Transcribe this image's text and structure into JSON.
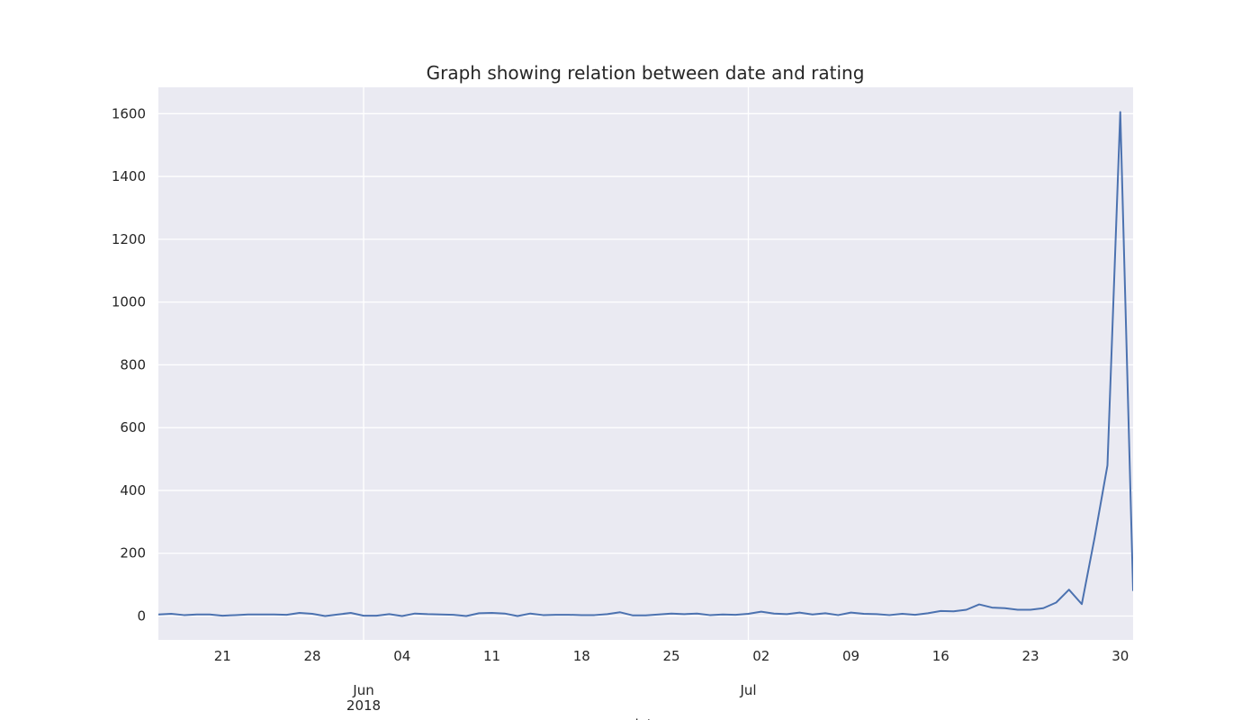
{
  "chart_data": {
    "type": "line",
    "title": "Graph showing relation between date and rating",
    "xlabel": "date",
    "ylabel": "",
    "xlim": [
      "2018-05-16",
      "2018-07-31"
    ],
    "ylim": [
      -76,
      1684
    ],
    "grid": true,
    "colors": {
      "background": "#eaeaf2",
      "grid": "#ffffff",
      "line": "#4c72b0",
      "text": "#262626"
    },
    "y_ticks": [
      0,
      200,
      400,
      600,
      800,
      1000,
      1200,
      1400,
      1600
    ],
    "x_ticks": [
      {
        "date": "2018-05-21",
        "label": "21"
      },
      {
        "date": "2018-05-28",
        "label": "28"
      },
      {
        "date": "2018-06-04",
        "label": "04"
      },
      {
        "date": "2018-06-11",
        "label": "11"
      },
      {
        "date": "2018-06-18",
        "label": "18"
      },
      {
        "date": "2018-06-25",
        "label": "25"
      },
      {
        "date": "2018-07-02",
        "label": "02"
      },
      {
        "date": "2018-07-09",
        "label": "09"
      },
      {
        "date": "2018-07-16",
        "label": "16"
      },
      {
        "date": "2018-07-23",
        "label": "23"
      },
      {
        "date": "2018-07-30",
        "label": "30"
      }
    ],
    "major_ticks": [
      {
        "date": "2018-06-01",
        "label": "Jun",
        "sublabel": "2018"
      },
      {
        "date": "2018-07-01",
        "label": "Jul",
        "sublabel": ""
      }
    ],
    "series": [
      {
        "x": [
          "2018-05-16",
          "2018-05-17",
          "2018-05-18",
          "2018-05-19",
          "2018-05-20",
          "2018-05-21",
          "2018-05-22",
          "2018-05-23",
          "2018-05-24",
          "2018-05-25",
          "2018-05-26",
          "2018-05-27",
          "2018-05-28",
          "2018-05-29",
          "2018-05-30",
          "2018-05-31",
          "2018-06-01",
          "2018-06-02",
          "2018-06-03",
          "2018-06-04",
          "2018-06-05",
          "2018-06-06",
          "2018-06-07",
          "2018-06-08",
          "2018-06-09",
          "2018-06-10",
          "2018-06-11",
          "2018-06-12",
          "2018-06-13",
          "2018-06-14",
          "2018-06-15",
          "2018-06-16",
          "2018-06-17",
          "2018-06-18",
          "2018-06-19",
          "2018-06-20",
          "2018-06-21",
          "2018-06-22",
          "2018-06-23",
          "2018-06-24",
          "2018-06-25",
          "2018-06-26",
          "2018-06-27",
          "2018-06-28",
          "2018-06-29",
          "2018-06-30",
          "2018-07-01",
          "2018-07-02",
          "2018-07-03",
          "2018-07-04",
          "2018-07-05",
          "2018-07-06",
          "2018-07-07",
          "2018-07-08",
          "2018-07-09",
          "2018-07-10",
          "2018-07-11",
          "2018-07-12",
          "2018-07-13",
          "2018-07-14",
          "2018-07-15",
          "2018-07-16",
          "2018-07-17",
          "2018-07-18",
          "2018-07-19",
          "2018-07-20",
          "2018-07-21",
          "2018-07-22",
          "2018-07-23",
          "2018-07-24",
          "2018-07-25",
          "2018-07-26",
          "2018-07-27",
          "2018-07-28",
          "2018-07-29",
          "2018-07-30",
          "2018-07-31"
        ],
        "y": [
          5,
          7,
          3,
          5,
          5,
          1,
          3,
          5,
          5,
          5,
          4,
          10,
          7,
          0,
          5,
          10,
          1,
          1,
          6,
          0,
          8,
          6,
          5,
          4,
          0,
          9,
          10,
          8,
          0,
          8,
          3,
          4,
          4,
          3,
          3,
          6,
          12,
          2,
          2,
          5,
          8,
          6,
          8,
          3,
          5,
          4,
          7,
          14,
          8,
          6,
          11,
          5,
          9,
          3,
          11,
          7,
          6,
          3,
          7,
          4,
          9,
          16,
          15,
          20,
          37,
          27,
          25,
          20,
          20,
          25,
          43,
          84,
          38,
          250,
          480,
          1605,
          80
        ]
      }
    ]
  }
}
